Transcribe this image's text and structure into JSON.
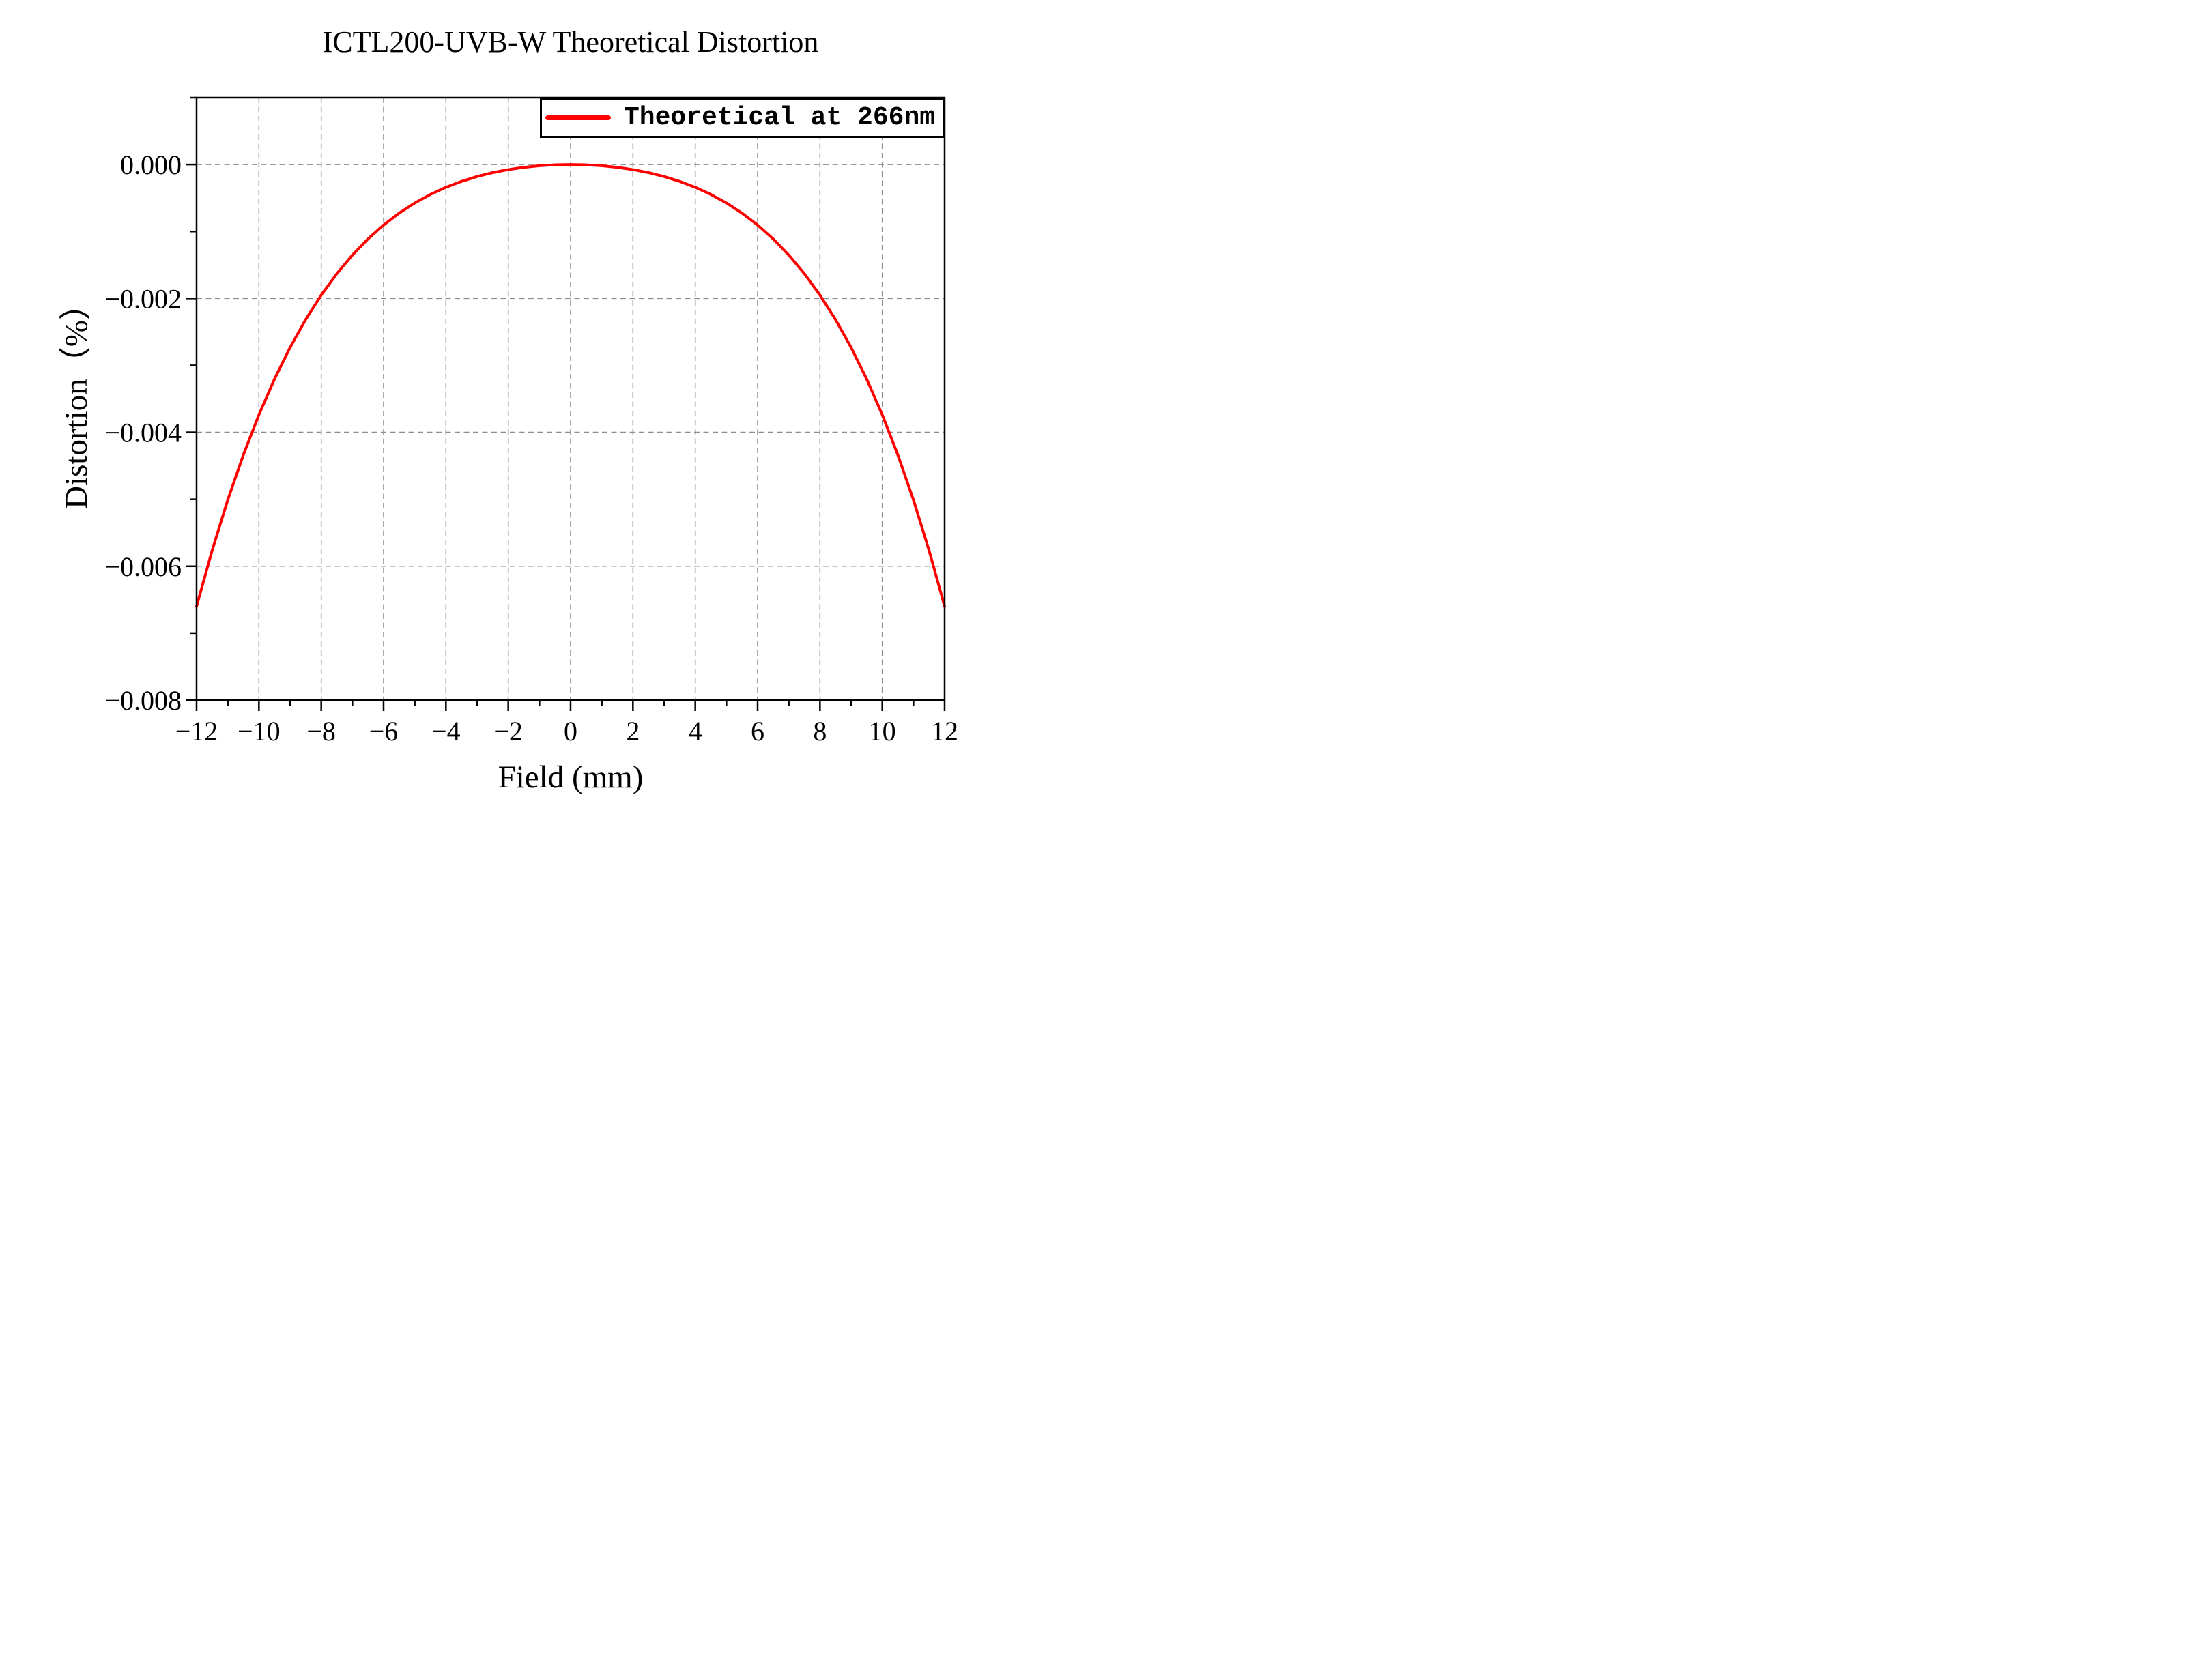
{
  "colors": {
    "curve": "#FF0000",
    "axis": "#000000",
    "grid": "#8D8D8D",
    "background": "#FFFFFF",
    "text": "#000000"
  },
  "chart_data": {
    "type": "line",
    "title": "ICTL200-UVB-W Theoretical Distortion",
    "xlabel": "Field (mm)",
    "ylabel": "Distortion（%）",
    "xlim": [
      -12,
      12
    ],
    "ylim": [
      -0.008,
      0.001
    ],
    "grid": {
      "style": "dashed",
      "vertical_at": [
        -10,
        -8,
        -6,
        -4,
        -2,
        0,
        2,
        4,
        6,
        8,
        10
      ],
      "horizontal_at": [
        0,
        -0.002,
        -0.004,
        -0.006
      ]
    },
    "x_major_ticks": [
      -12,
      -10,
      -8,
      -6,
      -4,
      -2,
      0,
      2,
      4,
      6,
      8,
      10,
      12
    ],
    "x_tick_labels": [
      "−12",
      "−10",
      "−8",
      "−6",
      "−4",
      "−2",
      "0",
      "2",
      "4",
      "6",
      "8",
      "10",
      "12"
    ],
    "x_minor_ticks": [
      -11,
      -9,
      -7,
      -5,
      -3,
      -1,
      1,
      3,
      5,
      7,
      9,
      11
    ],
    "y_major_ticks": [
      0,
      -0.002,
      -0.004,
      -0.006,
      -0.008
    ],
    "y_tick_labels": [
      "0.000",
      "−0.002",
      "−0.004",
      "−0.006",
      "−0.008"
    ],
    "y_minor_ticks": [
      0.001,
      -0.001,
      -0.003,
      -0.005,
      -0.007
    ],
    "legend": {
      "position": "top-right",
      "entries": [
        {
          "label": "Theoretical at 266nm",
          "color": "#FF0000"
        }
      ]
    },
    "series": [
      {
        "name": "Theoretical at 266nm",
        "color": "#FF0000",
        "points": [
          [
            -12.0,
            -0.0066001
          ],
          [
            -11.5,
            -0.005763
          ],
          [
            -11.0,
            -0.0050108
          ],
          [
            -10.5,
            -0.0043385
          ],
          [
            -10.0,
            -0.0037383
          ],
          [
            -9.5,
            -0.0032048
          ],
          [
            -9.0,
            -0.0027325
          ],
          [
            -8.5,
            -0.0023159
          ],
          [
            -8.0,
            -0.00195
          ],
          [
            -7.5,
            -0.0016302
          ],
          [
            -7.0,
            -0.0013518
          ],
          [
            -6.5,
            -0.0011108
          ],
          [
            -6.0,
            -0.0009033
          ],
          [
            -5.5,
            -0.0007256
          ],
          [
            -5.0,
            -0.0005745
          ],
          [
            -4.5,
            -0.0004469
          ],
          [
            -4.0,
            -0.00034
          ],
          [
            -3.5,
            -0.0002515
          ],
          [
            -3.0,
            -0.0001792
          ],
          [
            -2.5,
            -0.0001211
          ],
          [
            -2.0,
            -7.58e-05
          ],
          [
            -1.5,
            -4.19e-05
          ],
          [
            -1.0,
            -1.84e-05
          ],
          [
            -0.5,
            -4.6e-06
          ],
          [
            0.0,
            0.0
          ],
          [
            0.5,
            -4.6e-06
          ],
          [
            1.0,
            -1.84e-05
          ],
          [
            1.5,
            -4.19e-05
          ],
          [
            2.0,
            -7.58e-05
          ],
          [
            2.5,
            -0.0001211
          ],
          [
            3.0,
            -0.0001792
          ],
          [
            3.5,
            -0.0002515
          ],
          [
            4.0,
            -0.00034
          ],
          [
            4.5,
            -0.0004469
          ],
          [
            5.0,
            -0.0005745
          ],
          [
            5.5,
            -0.0007256
          ],
          [
            6.0,
            -0.0009033
          ],
          [
            6.5,
            -0.0011108
          ],
          [
            7.0,
            -0.0013518
          ],
          [
            7.5,
            -0.0016302
          ],
          [
            8.0,
            -0.00195
          ],
          [
            8.5,
            -0.0023159
          ],
          [
            9.0,
            -0.0027325
          ],
          [
            9.5,
            -0.0032048
          ],
          [
            10.0,
            -0.0037383
          ],
          [
            10.5,
            -0.0043385
          ],
          [
            11.0,
            -0.0050108
          ],
          [
            11.5,
            -0.005763
          ],
          [
            12.0,
            -0.0066001
          ]
        ]
      }
    ]
  }
}
